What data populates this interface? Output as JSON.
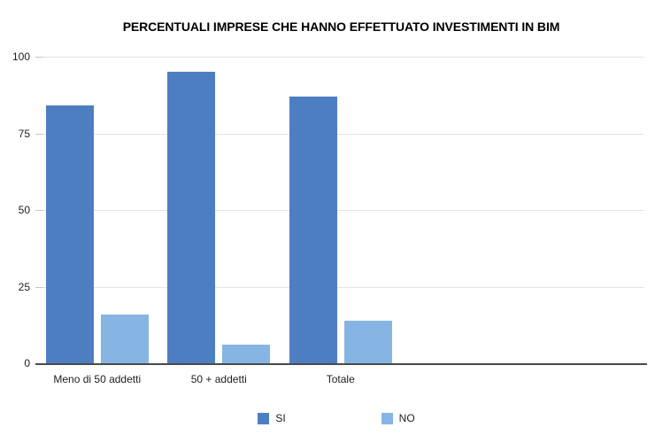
{
  "chart_data": {
    "type": "bar",
    "title": "PERCENTUALI IMPRESE CHE HANNO EFFETTUATO INVESTIMENTI IN BIM",
    "categories": [
      "Meno di 50 addetti",
      "50 + addetti",
      "Totale"
    ],
    "series": [
      {
        "name": "SI",
        "color": "#4D7EC1",
        "values": [
          84,
          95,
          87
        ]
      },
      {
        "name": "NO",
        "color": "#86B5E3",
        "values": [
          16,
          6,
          14
        ]
      }
    ],
    "xlabel": "",
    "ylabel": "",
    "ylim": [
      0,
      100
    ],
    "yticks": [
      0,
      25,
      50,
      75,
      100
    ],
    "grid": true,
    "legend_position": "bottom"
  }
}
